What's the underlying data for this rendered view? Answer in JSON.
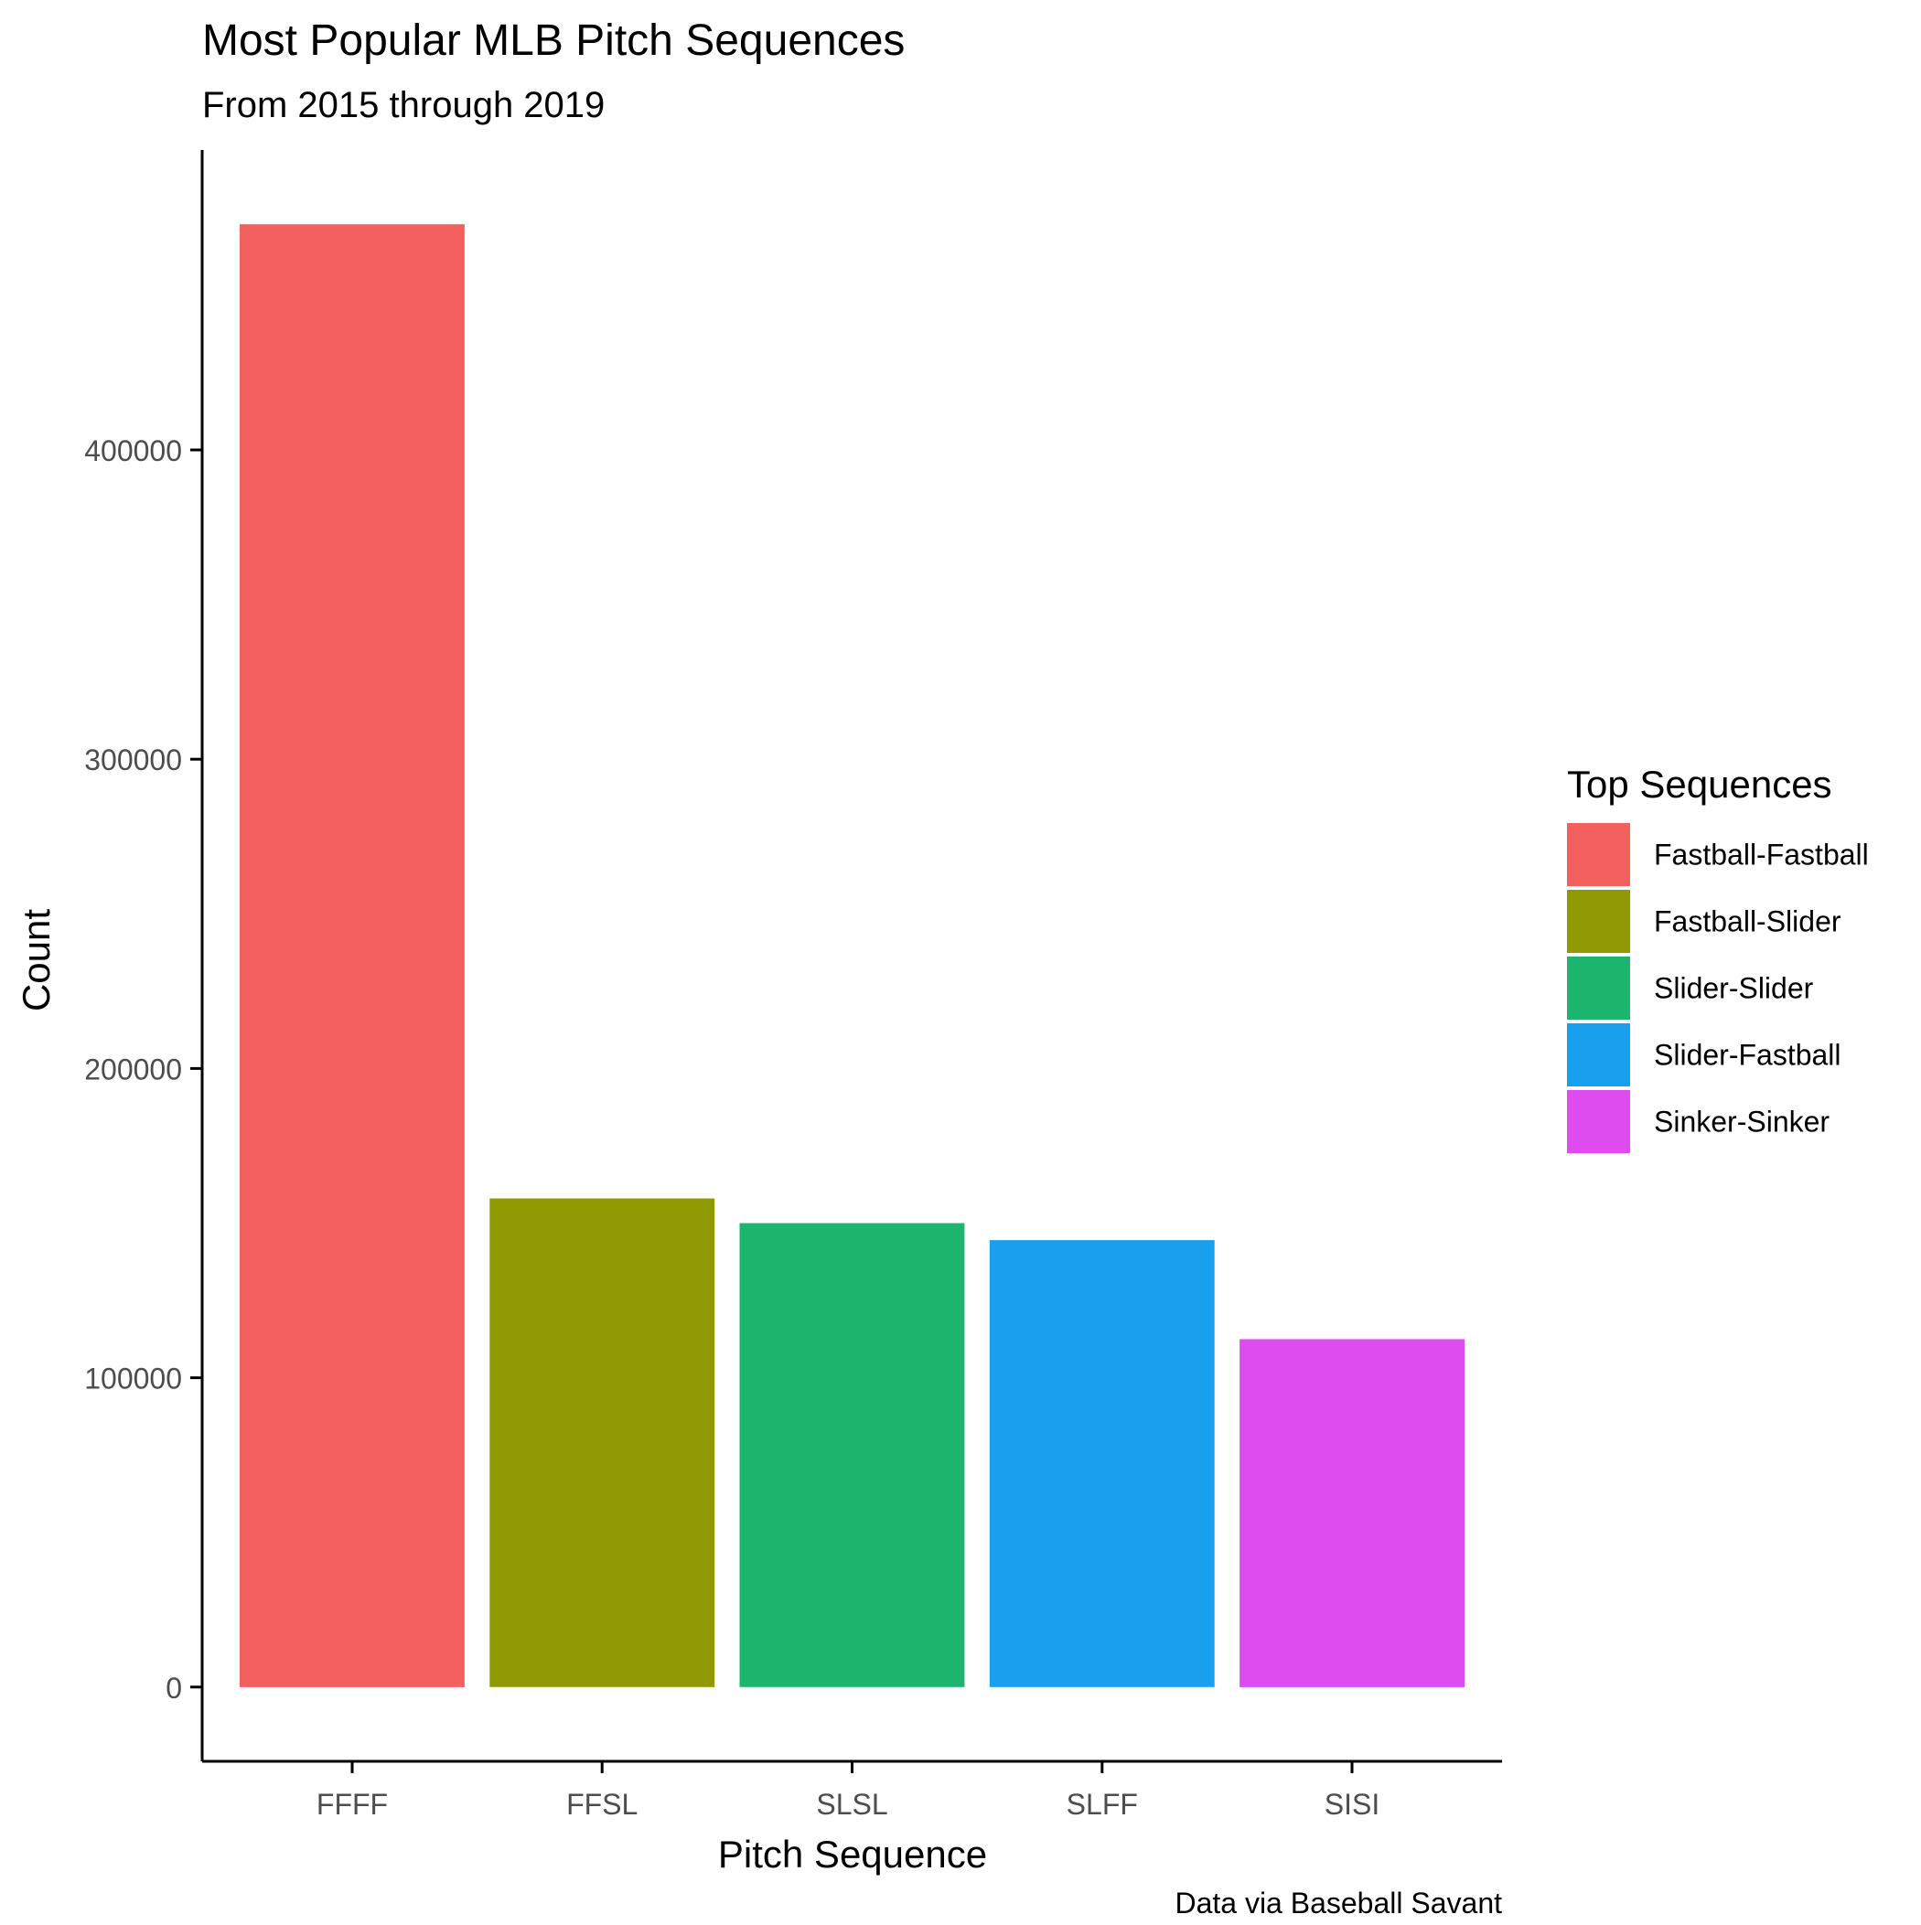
{
  "chart_data": {
    "type": "bar",
    "title": "Most Popular MLB Pitch Sequences",
    "subtitle": "From 2015 through 2019",
    "xlabel": "Pitch Sequence",
    "ylabel": "Count",
    "caption": "Data via Baseball Savant",
    "categories": [
      "FFFF",
      "FFSL",
      "SLSL",
      "SLFF",
      "SISI"
    ],
    "values": [
      473000,
      158000,
      150000,
      144500,
      112500
    ],
    "y_ticks": [
      0,
      100000,
      200000,
      300000,
      400000
    ],
    "y_tick_labels": [
      "0",
      "100000",
      "200000",
      "300000",
      "400000"
    ],
    "ylim": [
      -24000,
      497000
    ],
    "colors": [
      "#F2615E",
      "#929A03",
      "#1BB56E",
      "#18A0EF",
      "#DE4CF0"
    ],
    "grid": false,
    "legend": {
      "title": "Top Sequences",
      "placement": "right",
      "entries": [
        "Fastball-Fastball",
        "Fastball-Slider",
        "Slider-Slider",
        "Slider-Fastball",
        "Sinker-Sinker"
      ]
    }
  }
}
